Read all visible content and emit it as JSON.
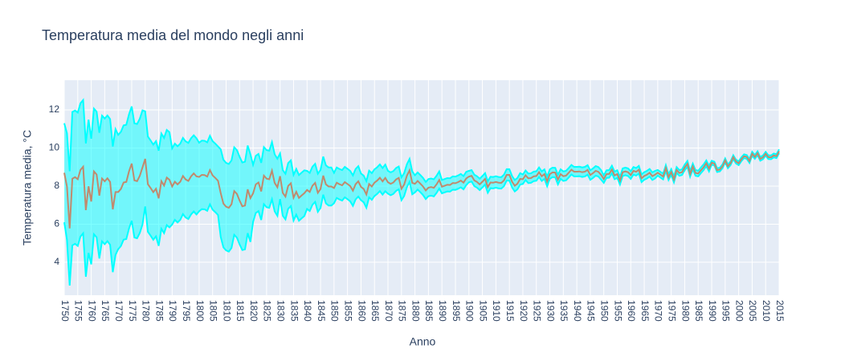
{
  "chart_data": {
    "type": "band-line",
    "title": "Temperatura media del mondo negli anni",
    "x_label": "Anno",
    "y_label": "Temperatura media, °C",
    "xlim": [
      1750,
      2015
    ],
    "ylim": [
      2.27,
      13.56
    ],
    "xticks": [
      1750,
      1755,
      1760,
      1765,
      1770,
      1775,
      1780,
      1785,
      1790,
      1795,
      1800,
      1805,
      1810,
      1815,
      1820,
      1825,
      1830,
      1835,
      1840,
      1845,
      1850,
      1855,
      1860,
      1865,
      1870,
      1875,
      1880,
      1885,
      1890,
      1895,
      1900,
      1905,
      1910,
      1915,
      1920,
      1925,
      1930,
      1935,
      1940,
      1945,
      1950,
      1955,
      1960,
      1965,
      1970,
      1975,
      1980,
      1985,
      1990,
      1995,
      2000,
      2005,
      2010,
      2015
    ],
    "yticks": [
      4,
      6,
      8,
      10,
      12
    ],
    "grid": true,
    "x": [
      1750,
      1751,
      1752,
      1753,
      1754,
      1755,
      1756,
      1757,
      1758,
      1759,
      1760,
      1761,
      1762,
      1763,
      1764,
      1765,
      1766,
      1767,
      1768,
      1769,
      1770,
      1771,
      1772,
      1773,
      1774,
      1775,
      1776,
      1777,
      1778,
      1779,
      1780,
      1781,
      1782,
      1783,
      1784,
      1785,
      1786,
      1787,
      1788,
      1789,
      1790,
      1791,
      1792,
      1793,
      1794,
      1795,
      1796,
      1797,
      1798,
      1799,
      1800,
      1801,
      1802,
      1803,
      1804,
      1805,
      1806,
      1807,
      1808,
      1809,
      1810,
      1811,
      1812,
      1813,
      1814,
      1815,
      1816,
      1817,
      1818,
      1819,
      1820,
      1821,
      1822,
      1823,
      1824,
      1825,
      1826,
      1827,
      1828,
      1829,
      1830,
      1831,
      1832,
      1833,
      1834,
      1835,
      1836,
      1837,
      1838,
      1839,
      1840,
      1841,
      1842,
      1843,
      1844,
      1845,
      1846,
      1847,
      1848,
      1849,
      1850,
      1851,
      1852,
      1853,
      1854,
      1855,
      1856,
      1857,
      1858,
      1859,
      1860,
      1861,
      1862,
      1863,
      1864,
      1865,
      1866,
      1867,
      1868,
      1869,
      1870,
      1871,
      1872,
      1873,
      1874,
      1875,
      1876,
      1877,
      1878,
      1879,
      1880,
      1881,
      1882,
      1883,
      1884,
      1885,
      1886,
      1887,
      1888,
      1889,
      1890,
      1891,
      1892,
      1893,
      1894,
      1895,
      1896,
      1897,
      1898,
      1899,
      1900,
      1901,
      1902,
      1903,
      1904,
      1905,
      1906,
      1907,
      1908,
      1909,
      1910,
      1911,
      1912,
      1913,
      1914,
      1915,
      1916,
      1917,
      1918,
      1919,
      1920,
      1921,
      1922,
      1923,
      1924,
      1925,
      1926,
      1927,
      1928,
      1929,
      1930,
      1931,
      1932,
      1933,
      1934,
      1935,
      1936,
      1937,
      1938,
      1939,
      1940,
      1941,
      1942,
      1943,
      1944,
      1945,
      1946,
      1947,
      1948,
      1949,
      1950,
      1951,
      1952,
      1953,
      1954,
      1955,
      1956,
      1957,
      1958,
      1959,
      1960,
      1961,
      1962,
      1963,
      1964,
      1965,
      1966,
      1967,
      1968,
      1969,
      1970,
      1971,
      1972,
      1973,
      1974,
      1975,
      1976,
      1977,
      1978,
      1979,
      1980,
      1981,
      1982,
      1983,
      1984,
      1985,
      1986,
      1987,
      1988,
      1989,
      1990,
      1991,
      1992,
      1993,
      1994,
      1995,
      1996,
      1997,
      1998,
      1999,
      2000,
      2001,
      2002,
      2003,
      2004,
      2005,
      2006,
      2007,
      2008,
      2009,
      2010,
      2011,
      2012,
      2013,
      2014,
      2015
    ],
    "band": {
      "color": "#00ffff",
      "fill_color": "rgba(0,255,255,0.5)",
      "upper": [
        11.3,
        10.78,
        8.78,
        11.89,
        11.97,
        11.86,
        12.35,
        12.52,
        10.24,
        11.49,
        10.49,
        12.07,
        11.91,
        10.8,
        11.7,
        11.55,
        11.71,
        11.52,
        10.08,
        10.99,
        10.69,
        10.85,
        11.19,
        11.22,
        11.77,
        12.18,
        11.3,
        11.26,
        11.54,
        11.98,
        11.93,
        10.6,
        10.4,
        10.18,
        10.36,
        9.86,
        10.76,
        10.53,
        10.95,
        10.83,
        9.98,
        10.23,
        10.09,
        10.23,
        10.53,
        10.35,
        10.27,
        10.51,
        10.67,
        10.51,
        10.28,
        10.39,
        10.38,
        10.3,
        10.64,
        10.36,
        10.23,
        10.08,
        9.93,
        9.38,
        9.22,
        9.16,
        9.35,
        10.04,
        9.89,
        9.54,
        9.24,
        9.28,
        10.13,
        9.67,
        9.12,
        9.59,
        9.69,
        9.22,
        10.05,
        9.89,
        9.86,
        10.31,
        9.67,
        9.44,
        9.72,
        8.84,
        8.65,
        9.21,
        9.35,
        8.59,
        8.9,
        8.58,
        8.71,
        8.83,
        8.8,
        8.69,
        9.02,
        9.17,
        8.65,
        8.85,
        9.55,
        9.09,
        8.98,
        8.98,
        8.7,
        8.98,
        8.9,
        8.84,
        9.01,
        8.91,
        8.8,
        8.56,
        8.9,
        9.05,
        8.66,
        8.55,
        8.26,
        8.81,
        8.68,
        8.88,
        8.99,
        9.14,
        8.95,
        9.13,
        8.8,
        8.72,
        8.79,
        8.95,
        9.03,
        8.46,
        8.68,
        9.14,
        9.43,
        8.77,
        8.57,
        8.72,
        8.58,
        8.43,
        8.22,
        8.37,
        8.4,
        8.36,
        8.54,
        8.77,
        8.32,
        8.37,
        8.42,
        8.41,
        8.51,
        8.5,
        8.56,
        8.64,
        8.53,
        8.75,
        8.8,
        8.84,
        8.6,
        8.52,
        8.39,
        8.53,
        8.68,
        8.25,
        8.49,
        8.48,
        8.52,
        8.48,
        8.47,
        8.6,
        8.89,
        8.89,
        8.53,
        8.32,
        8.43,
        8.68,
        8.61,
        8.82,
        8.66,
        8.67,
        8.76,
        8.78,
        8.98,
        8.77,
        8.88,
        8.49,
        8.88,
        8.97,
        8.96,
        8.59,
        8.88,
        8.77,
        8.8,
        8.95,
        9.11,
        9.01,
        9.01,
        9.02,
        8.98,
        9.01,
        9.1,
        8.83,
        8.93,
        9.05,
        9.0,
        8.84,
        8.57,
        8.83,
        8.84,
        9.07,
        8.76,
        8.83,
        8.48,
        8.93,
        8.97,
        8.93,
        8.78,
        9.0,
        8.95,
        9.06,
        8.61,
        8.73,
        8.8,
        8.9,
        8.72,
        8.8,
        8.85,
        8.75,
        8.65,
        9.1,
        8.62,
        8.89,
        8.5,
        9.0,
        8.84,
        8.88,
        9.13,
        9.32,
        8.79,
        9.18,
        8.84,
        8.81,
        8.98,
        9.14,
        9.35,
        9.07,
        9.33,
        9.28,
        8.94,
        8.97,
        9.14,
        9.45,
        9.14,
        9.3,
        9.62,
        9.39,
        9.3,
        9.51,
        9.67,
        9.63,
        9.42,
        9.8,
        9.63,
        9.83,
        9.53,
        9.61,
        9.8,
        9.62,
        9.61,
        9.71,
        9.67,
        9.93
      ],
      "lower": [
        6.1,
        5.18,
        2.78,
        4.89,
        4.97,
        4.86,
        5.35,
        5.52,
        3.24,
        4.49,
        3.89,
        5.47,
        5.31,
        4.2,
        5.1,
        4.95,
        5.11,
        4.92,
        3.48,
        4.39,
        4.69,
        4.85,
        5.19,
        5.22,
        5.77,
        6.18,
        5.3,
        5.26,
        5.54,
        5.98,
        6.93,
        5.6,
        5.4,
        5.18,
        5.36,
        4.86,
        5.76,
        5.53,
        5.95,
        5.83,
        5.98,
        6.23,
        6.09,
        6.23,
        6.53,
        6.35,
        6.27,
        6.51,
        6.67,
        6.51,
        6.68,
        6.79,
        6.78,
        6.7,
        7.04,
        6.76,
        6.63,
        6.48,
        5.33,
        4.78,
        4.62,
        4.56,
        4.75,
        5.44,
        5.29,
        4.94,
        4.64,
        4.68,
        5.53,
        5.07,
        6.12,
        6.59,
        6.69,
        6.22,
        7.05,
        6.89,
        6.86,
        7.31,
        6.67,
        6.44,
        7.32,
        6.44,
        6.25,
        6.81,
        6.95,
        6.19,
        6.5,
        6.18,
        6.31,
        6.43,
        6.8,
        6.69,
        7.02,
        7.17,
        6.65,
        6.85,
        7.55,
        7.09,
        6.98,
        6.98,
        7.1,
        7.38,
        7.3,
        7.24,
        7.41,
        7.31,
        7.2,
        6.96,
        7.3,
        7.45,
        7.26,
        7.15,
        6.86,
        7.41,
        7.28,
        7.48,
        7.59,
        7.74,
        7.55,
        7.73,
        7.6,
        7.52,
        7.59,
        7.75,
        7.83,
        7.26,
        7.48,
        7.94,
        8.23,
        7.57,
        7.67,
        7.82,
        7.68,
        7.53,
        7.32,
        7.47,
        7.5,
        7.46,
        7.64,
        7.87,
        7.62,
        7.67,
        7.72,
        7.71,
        7.81,
        7.8,
        7.86,
        7.94,
        7.83,
        8.05,
        8.2,
        8.24,
        8.0,
        7.92,
        7.79,
        7.93,
        8.08,
        7.65,
        7.89,
        7.88,
        7.92,
        7.88,
        7.87,
        8.0,
        8.29,
        8.29,
        7.93,
        7.72,
        7.83,
        8.08,
        8.11,
        8.32,
        8.16,
        8.17,
        8.26,
        8.28,
        8.48,
        8.27,
        8.38,
        7.99,
        8.38,
        8.47,
        8.46,
        8.09,
        8.38,
        8.27,
        8.3,
        8.45,
        8.61,
        8.51,
        8.51,
        8.52,
        8.48,
        8.51,
        8.6,
        8.33,
        8.43,
        8.55,
        8.5,
        8.34,
        8.17,
        8.43,
        8.44,
        8.67,
        8.36,
        8.43,
        8.08,
        8.53,
        8.57,
        8.53,
        8.38,
        8.6,
        8.55,
        8.66,
        8.21,
        8.33,
        8.4,
        8.5,
        8.32,
        8.4,
        8.55,
        8.45,
        8.35,
        8.8,
        8.32,
        8.59,
        8.2,
        8.7,
        8.54,
        8.58,
        8.83,
        9.02,
        8.49,
        8.88,
        8.54,
        8.51,
        8.68,
        8.84,
        9.05,
        8.77,
        9.13,
        9.08,
        8.74,
        8.77,
        8.94,
        9.25,
        8.94,
        9.1,
        9.42,
        9.19,
        9.1,
        9.31,
        9.47,
        9.43,
        9.22,
        9.6,
        9.43,
        9.63,
        9.33,
        9.41,
        9.6,
        9.42,
        9.41,
        9.51,
        9.47,
        9.73
      ]
    },
    "series": [
      {
        "color": "#c08a6e",
        "values": [
          8.7,
          7.98,
          5.78,
          8.39,
          8.47,
          8.36,
          8.85,
          9.02,
          6.74,
          7.99,
          7.19,
          8.77,
          8.61,
          7.5,
          8.4,
          8.25,
          8.41,
          8.22,
          6.78,
          7.69,
          7.69,
          7.85,
          8.19,
          8.22,
          8.77,
          9.18,
          8.3,
          8.26,
          8.54,
          8.98,
          9.43,
          8.1,
          7.9,
          7.68,
          7.86,
          7.36,
          8.26,
          8.03,
          8.45,
          8.33,
          7.98,
          8.23,
          8.09,
          8.23,
          8.53,
          8.35,
          8.27,
          8.51,
          8.67,
          8.51,
          8.48,
          8.59,
          8.58,
          8.5,
          8.84,
          8.56,
          8.43,
          8.28,
          7.63,
          7.08,
          6.92,
          6.86,
          7.05,
          7.74,
          7.59,
          7.24,
          6.94,
          6.98,
          7.83,
          7.37,
          7.62,
          8.09,
          8.19,
          7.72,
          8.55,
          8.39,
          8.36,
          8.81,
          8.17,
          7.94,
          8.52,
          7.64,
          7.45,
          8.01,
          8.15,
          7.39,
          7.7,
          7.38,
          7.51,
          7.63,
          7.8,
          7.69,
          8.02,
          8.17,
          7.65,
          7.85,
          8.55,
          8.09,
          7.98,
          7.98,
          7.9,
          8.18,
          8.1,
          8.04,
          8.21,
          8.11,
          8.0,
          7.76,
          8.1,
          8.25,
          7.96,
          7.85,
          7.56,
          8.11,
          7.98,
          8.18,
          8.29,
          8.44,
          8.25,
          8.43,
          8.2,
          8.12,
          8.19,
          8.35,
          8.43,
          7.86,
          8.08,
          8.54,
          8.83,
          8.17,
          8.12,
          8.27,
          8.13,
          7.98,
          7.77,
          7.92,
          7.95,
          7.91,
          8.09,
          8.32,
          7.97,
          8.02,
          8.07,
          8.06,
          8.16,
          8.15,
          8.21,
          8.29,
          8.18,
          8.4,
          8.5,
          8.54,
          8.3,
          8.22,
          8.09,
          8.23,
          8.38,
          7.95,
          8.19,
          8.18,
          8.22,
          8.18,
          8.17,
          8.3,
          8.59,
          8.59,
          8.23,
          8.02,
          8.13,
          8.38,
          8.36,
          8.57,
          8.41,
          8.42,
          8.51,
          8.53,
          8.73,
          8.52,
          8.63,
          8.24,
          8.63,
          8.72,
          8.71,
          8.34,
          8.63,
          8.52,
          8.55,
          8.7,
          8.86,
          8.76,
          8.76,
          8.77,
          8.73,
          8.76,
          8.85,
          8.58,
          8.68,
          8.8,
          8.75,
          8.59,
          8.37,
          8.63,
          8.64,
          8.87,
          8.56,
          8.63,
          8.28,
          8.73,
          8.77,
          8.73,
          8.58,
          8.8,
          8.75,
          8.86,
          8.41,
          8.53,
          8.6,
          8.7,
          8.52,
          8.6,
          8.7,
          8.6,
          8.5,
          8.95,
          8.47,
          8.74,
          8.35,
          8.85,
          8.69,
          8.73,
          8.98,
          9.17,
          8.64,
          9.03,
          8.69,
          8.66,
          8.83,
          8.99,
          9.2,
          8.92,
          9.23,
          9.18,
          8.84,
          8.87,
          9.04,
          9.35,
          9.04,
          9.2,
          9.52,
          9.29,
          9.2,
          9.41,
          9.57,
          9.53,
          9.32,
          9.7,
          9.53,
          9.73,
          9.43,
          9.51,
          9.7,
          9.52,
          9.51,
          9.61,
          9.57,
          9.83
        ]
      }
    ]
  }
}
